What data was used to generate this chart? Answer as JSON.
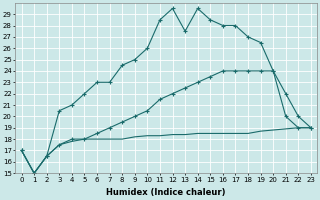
{
  "xlabel": "Humidex (Indice chaleur)",
  "bg_color": "#cce8e8",
  "grid_color": "#ffffff",
  "line_color": "#1a6b6b",
  "x_values": [
    0,
    1,
    2,
    3,
    4,
    5,
    6,
    7,
    8,
    9,
    10,
    11,
    12,
    13,
    14,
    15,
    16,
    17,
    18,
    19,
    20,
    21,
    22,
    23
  ],
  "line_top": [
    17.0,
    15.0,
    16.5,
    20.5,
    21.0,
    22.0,
    23.0,
    23.0,
    24.5,
    25.0,
    26.0,
    28.5,
    29.5,
    27.5,
    29.5,
    28.5,
    28.0,
    28.0,
    27.0,
    26.5,
    24.0,
    22.0,
    20.0,
    19.0
  ],
  "line_mid": [
    17.0,
    15.0,
    16.5,
    17.5,
    18.0,
    18.0,
    18.5,
    19.0,
    19.5,
    20.0,
    20.5,
    21.5,
    22.0,
    22.5,
    23.0,
    23.5,
    24.0,
    24.0,
    24.0,
    24.0,
    24.0,
    20.0,
    19.0,
    19.0
  ],
  "line_bot": [
    17.0,
    15.0,
    16.5,
    17.5,
    17.8,
    18.0,
    18.0,
    18.0,
    18.0,
    18.2,
    18.3,
    18.3,
    18.4,
    18.4,
    18.5,
    18.5,
    18.5,
    18.5,
    18.5,
    18.7,
    18.8,
    18.9,
    19.0,
    19.0
  ],
  "ylim": [
    15,
    30
  ],
  "xlim_min": -0.5,
  "xlim_max": 23.5,
  "yticks": [
    15,
    16,
    17,
    18,
    19,
    20,
    21,
    22,
    23,
    24,
    25,
    26,
    27,
    28,
    29
  ],
  "xticks": [
    0,
    1,
    2,
    3,
    4,
    5,
    6,
    7,
    8,
    9,
    10,
    11,
    12,
    13,
    14,
    15,
    16,
    17,
    18,
    19,
    20,
    21,
    22,
    23
  ],
  "marker": "+",
  "markersize": 3,
  "linewidth": 0.8,
  "fontsize_label": 6,
  "fontsize_tick": 5
}
